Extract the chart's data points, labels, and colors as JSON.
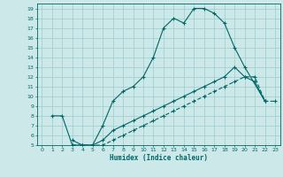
{
  "title": "",
  "xlabel": "Humidex (Indice chaleur)",
  "bg_color": "#cce8e8",
  "grid_color": "#99cccc",
  "line_color": "#006666",
  "xlim": [
    -0.5,
    23.5
  ],
  "ylim": [
    5,
    19.5
  ],
  "xticks": [
    0,
    1,
    2,
    3,
    4,
    5,
    6,
    7,
    8,
    9,
    10,
    11,
    12,
    13,
    14,
    15,
    16,
    17,
    18,
    19,
    20,
    21,
    22,
    23
  ],
  "yticks": [
    5,
    6,
    7,
    8,
    9,
    10,
    11,
    12,
    13,
    14,
    15,
    16,
    17,
    18,
    19
  ],
  "line1_x": [
    1,
    2,
    3,
    4,
    5,
    6,
    7,
    8,
    9,
    10,
    11,
    12,
    13,
    14,
    15,
    16,
    17,
    18,
    19,
    20,
    22
  ],
  "line1_y": [
    8,
    8,
    5,
    5,
    5,
    7,
    9.5,
    10.5,
    11,
    12,
    14,
    17,
    18,
    17.5,
    19,
    19,
    18.5,
    17.5,
    15,
    13,
    9.5
  ],
  "line2_x": [
    3,
    4,
    5,
    6,
    7,
    8,
    9,
    10,
    11,
    12,
    13,
    14,
    15,
    16,
    17,
    18,
    19,
    20,
    21,
    22
  ],
  "line2_y": [
    5.5,
    5,
    5,
    5.5,
    6.5,
    7,
    7.5,
    8,
    8.5,
    9,
    9.5,
    10,
    10.5,
    11,
    11.5,
    12,
    13,
    12,
    11.5,
    9.5
  ],
  "line3_x": [
    3,
    4,
    5,
    6,
    7,
    8,
    9,
    10,
    11,
    12,
    13,
    14,
    15,
    16,
    17,
    18,
    19,
    20,
    21,
    22,
    23
  ],
  "line3_y": [
    5,
    5,
    5,
    5,
    5.5,
    6,
    6.5,
    7,
    7.5,
    8,
    8.5,
    9,
    9.5,
    10,
    10.5,
    11,
    11.5,
    12,
    12,
    9.5,
    9.5
  ]
}
